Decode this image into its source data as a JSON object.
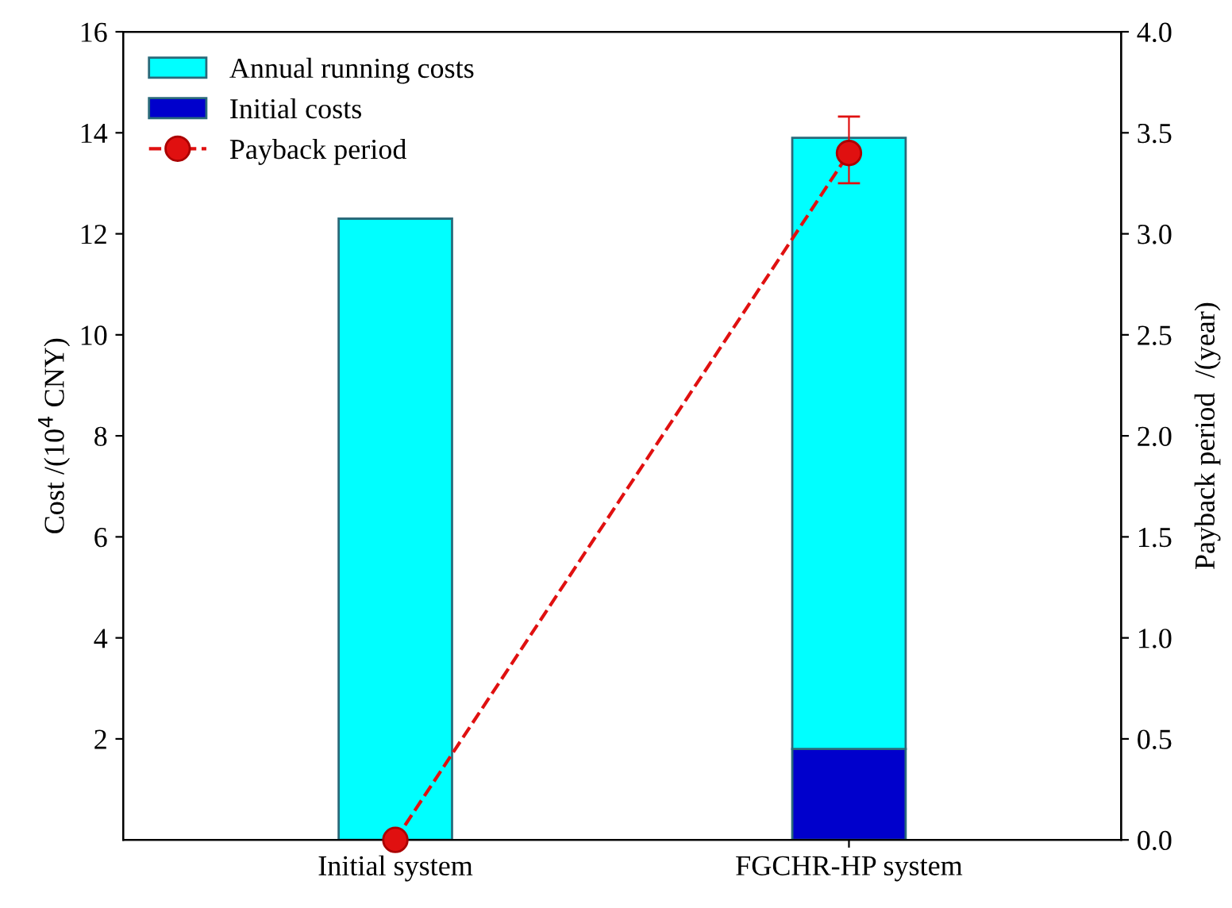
{
  "chart_data": {
    "type": "bar",
    "stacked": true,
    "categories": [
      "Initial system",
      "FGCHR-HP system"
    ],
    "ylabel": "Cost /(10$^{4}$ CNY)",
    "y2label": "Payback period  /(year)",
    "ylim": [
      0,
      16
    ],
    "yticks": [
      2,
      4,
      6,
      8,
      10,
      12,
      14,
      16
    ],
    "y2lim": [
      0,
      4
    ],
    "y2ticks": [
      {
        "value": 0,
        "label": "0.0"
      },
      {
        "value": 0.5,
        "label": "0.5"
      },
      {
        "value": 1,
        "label": "1.0"
      },
      {
        "value": 1.5,
        "label": "1.5"
      },
      {
        "value": 2,
        "label": "2.0"
      },
      {
        "value": 2.5,
        "label": "2.5"
      },
      {
        "value": 3,
        "label": "3.0"
      },
      {
        "value": 3.5,
        "label": "3.5"
      },
      {
        "value": 4,
        "label": "4.0"
      }
    ],
    "series": [
      {
        "name": "Initial costs",
        "color": "#0000cc",
        "values": [
          0,
          1.8
        ]
      },
      {
        "name": "Annual running costs",
        "color": "#00ffff",
        "values": [
          12.3,
          12.1
        ]
      },
      {
        "name": "Payback period",
        "type": "line",
        "axis": "y2",
        "color": "#e01010",
        "marker": "circle",
        "line_style": "dashed",
        "values": [
          0,
          3.4
        ],
        "errors": [
          null,
          [
            3.25,
            3.58
          ]
        ]
      }
    ],
    "legend": "top left",
    "grid": false
  }
}
